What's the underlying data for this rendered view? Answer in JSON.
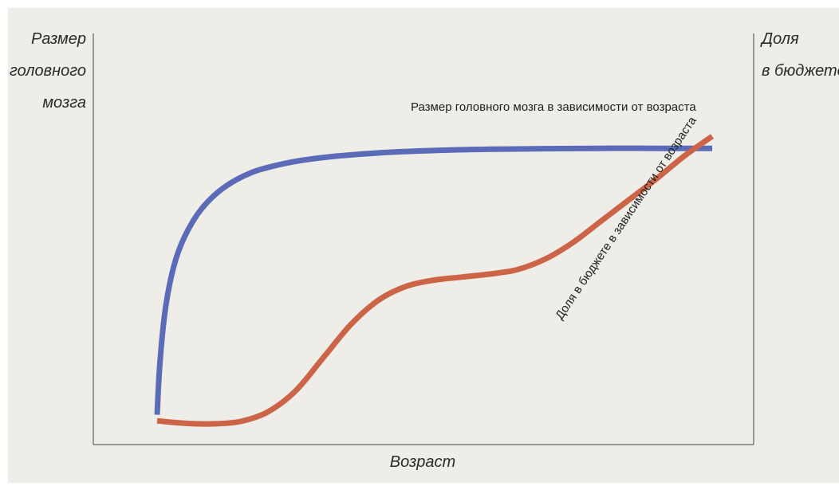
{
  "chart_data": {
    "type": "line",
    "title": "",
    "xlabel": "Возраст",
    "ylabel_left_lines": [
      "Размер",
      "головного",
      "мозга"
    ],
    "ylabel_right_lines": [
      "Доля",
      "в бюджете"
    ],
    "xlim": [
      0,
      100
    ],
    "ylim": [
      0,
      100
    ],
    "grid": false,
    "ticks": false,
    "series": [
      {
        "name": "Размер головного мозга в зависимости от возраста",
        "color": "#5b6bb8",
        "axis": "left",
        "x": [
          0,
          0.5,
          1.5,
          3,
          5,
          8,
          12,
          17,
          23,
          30,
          40,
          50,
          60,
          70,
          80,
          90,
          100
        ],
        "y": [
          3,
          20,
          38,
          52,
          62,
          71,
          78,
          83,
          86,
          88,
          89.5,
          90.3,
          90.7,
          90.9,
          91,
          91,
          91
        ]
      },
      {
        "name": "Доля в бюджете в зависимости от возраста",
        "color": "#cc6448",
        "axis": "right",
        "x": [
          0,
          5,
          10,
          15,
          20,
          25,
          30,
          35,
          40,
          45,
          50,
          55,
          60,
          65,
          70,
          75,
          80,
          85,
          90,
          95,
          100
        ],
        "y": [
          1,
          0.2,
          0,
          0.8,
          4,
          11,
          22,
          33,
          41,
          45.5,
          47.5,
          48.5,
          49.5,
          51,
          54.5,
          60,
          67,
          74,
          81,
          88.5,
          95
        ]
      }
    ]
  }
}
